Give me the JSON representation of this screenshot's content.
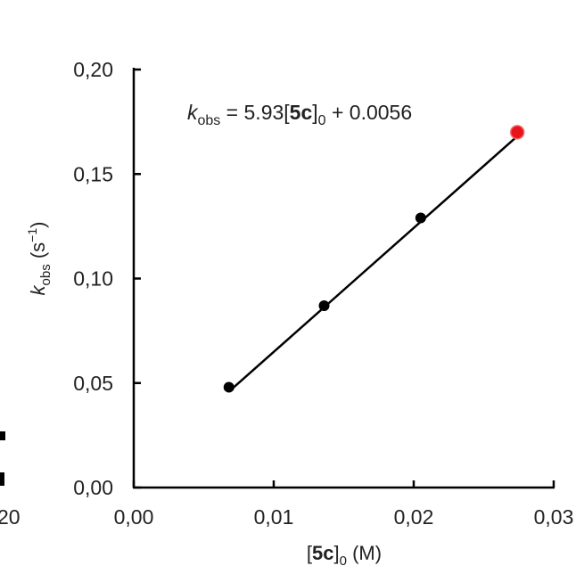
{
  "chart_data": {
    "type": "scatter",
    "xlabel": {
      "open": "[",
      "compound": "5c",
      "close": "]",
      "sub": "0",
      "unit": " (M)"
    },
    "ylabel": {
      "symbol": "k",
      "sub": "obs",
      "unit_open": " (s",
      "unit_sup": "−1",
      "unit_close": ")"
    },
    "xlim": [
      0,
      0.03
    ],
    "ylim": [
      0,
      0.2
    ],
    "x_ticks": [
      0,
      0.01,
      0.02,
      0.03
    ],
    "x_tick_labels": [
      "0,00",
      "0,01",
      "0,02",
      "0,03"
    ],
    "y_ticks": [
      0,
      0.05,
      0.1,
      0.15,
      0.2
    ],
    "y_tick_labels": [
      "0,00",
      "0,05",
      "0,10",
      "0,15",
      "0,20"
    ],
    "points": [
      {
        "x": 0.0068,
        "y": 0.048,
        "color": "#000000"
      },
      {
        "x": 0.0136,
        "y": 0.087,
        "color": "#000000"
      },
      {
        "x": 0.0205,
        "y": 0.129,
        "color": "#000000"
      },
      {
        "x": 0.0274,
        "y": 0.17,
        "color": "#e8141a"
      }
    ],
    "fit": {
      "slope": 5.93,
      "intercept": 0.0056,
      "x_start": 0.0068,
      "x_end": 0.0274
    },
    "equation": {
      "k": "k",
      "sub": "obs",
      "eq": " = 5.93[",
      "compound": "5c",
      "close": "]",
      "sub0": "0",
      "tail": " + 0.0056"
    },
    "edge_label": "20"
  }
}
